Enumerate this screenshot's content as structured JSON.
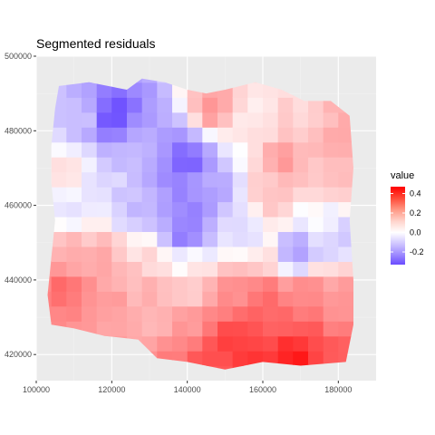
{
  "chart_data": {
    "type": "heatmap",
    "title": "Segmented residuals",
    "xlabel": "",
    "ylabel": "",
    "xlim": [
      100000,
      190000
    ],
    "ylim": [
      413000,
      500000
    ],
    "x_ticks": [
      100000,
      120000,
      140000,
      160000,
      180000
    ],
    "y_ticks": [
      420000,
      440000,
      460000,
      480000,
      500000
    ],
    "x_tick_labels": [
      "100000",
      "120000",
      "140000",
      "160000",
      "180000"
    ],
    "y_tick_labels": [
      "420000",
      "440000",
      "460000",
      "480000",
      "500000"
    ],
    "grid": true,
    "legend": {
      "title": "value",
      "placement": "right",
      "range": [
        -0.33,
        0.47
      ],
      "ticks": [
        0.4,
        0.2,
        0.0,
        -0.2
      ],
      "tick_labels": [
        "0.4",
        "0.2",
        "0.0",
        "-0.2"
      ]
    },
    "colors": {
      "negative": "#6a4cff",
      "zero": "#ffffff",
      "positive": "#ff0000",
      "panel": "#ebebeb",
      "grid_major": "#ffffff",
      "grid_minor": "#f2f2f2"
    },
    "anchors": [
      {
        "x": 121000,
        "y": 484000,
        "value": -0.33
      },
      {
        "x": 112000,
        "y": 484000,
        "value": -0.1
      },
      {
        "x": 128000,
        "y": 480000,
        "value": -0.15
      },
      {
        "x": 140000,
        "y": 472000,
        "value": -0.28
      },
      {
        "x": 133000,
        "y": 468000,
        "value": -0.18
      },
      {
        "x": 140000,
        "y": 460000,
        "value": -0.22
      },
      {
        "x": 139000,
        "y": 452000,
        "value": -0.25
      },
      {
        "x": 147000,
        "y": 464000,
        "value": -0.15
      },
      {
        "x": 126000,
        "y": 458000,
        "value": -0.1
      },
      {
        "x": 127000,
        "y": 472000,
        "value": -0.12
      },
      {
        "x": 108000,
        "y": 469000,
        "value": 0.05
      },
      {
        "x": 108000,
        "y": 458000,
        "value": -0.03
      },
      {
        "x": 118000,
        "y": 467000,
        "value": -0.05
      },
      {
        "x": 154000,
        "y": 452000,
        "value": -0.06
      },
      {
        "x": 147000,
        "y": 486000,
        "value": 0.15
      },
      {
        "x": 157000,
        "y": 482000,
        "value": 0.02
      },
      {
        "x": 170000,
        "y": 483000,
        "value": 0.06
      },
      {
        "x": 180000,
        "y": 480000,
        "value": 0.12
      },
      {
        "x": 165000,
        "y": 472000,
        "value": 0.15
      },
      {
        "x": 178000,
        "y": 468000,
        "value": 0.1
      },
      {
        "x": 162000,
        "y": 462000,
        "value": 0.08
      },
      {
        "x": 176000,
        "y": 458000,
        "value": 0.0
      },
      {
        "x": 169000,
        "y": 447000,
        "value": -0.18
      },
      {
        "x": 180000,
        "y": 452000,
        "value": -0.08
      },
      {
        "x": 160000,
        "y": 445000,
        "value": 0.05
      },
      {
        "x": 108000,
        "y": 447000,
        "value": 0.12
      },
      {
        "x": 118000,
        "y": 446000,
        "value": 0.12
      },
      {
        "x": 130000,
        "y": 447000,
        "value": 0.05
      },
      {
        "x": 141000,
        "y": 445000,
        "value": 0.02
      },
      {
        "x": 108000,
        "y": 437000,
        "value": 0.25
      },
      {
        "x": 118000,
        "y": 436000,
        "value": 0.15
      },
      {
        "x": 130000,
        "y": 436000,
        "value": 0.12
      },
      {
        "x": 140000,
        "y": 437000,
        "value": 0.06
      },
      {
        "x": 150000,
        "y": 436000,
        "value": 0.18
      },
      {
        "x": 160000,
        "y": 436000,
        "value": 0.25
      },
      {
        "x": 172000,
        "y": 436000,
        "value": 0.2
      },
      {
        "x": 180000,
        "y": 434000,
        "value": 0.15
      },
      {
        "x": 108000,
        "y": 428000,
        "value": 0.18
      },
      {
        "x": 120000,
        "y": 428000,
        "value": 0.15
      },
      {
        "x": 130000,
        "y": 426000,
        "value": 0.1
      },
      {
        "x": 140000,
        "y": 427000,
        "value": 0.15
      },
      {
        "x": 152000,
        "y": 424000,
        "value": 0.35
      },
      {
        "x": 162000,
        "y": 426000,
        "value": 0.28
      },
      {
        "x": 172000,
        "y": 425000,
        "value": 0.3
      },
      {
        "x": 180000,
        "y": 428000,
        "value": 0.2
      },
      {
        "x": 134000,
        "y": 420000,
        "value": 0.2
      },
      {
        "x": 145000,
        "y": 420000,
        "value": 0.3
      },
      {
        "x": 158000,
        "y": 420000,
        "value": 0.35
      },
      {
        "x": 168000,
        "y": 420000,
        "value": 0.42
      },
      {
        "x": 178000,
        "y": 421000,
        "value": 0.3
      }
    ],
    "outline": [
      [
        106000,
        492000
      ],
      [
        114000,
        493000
      ],
      [
        124000,
        491000
      ],
      [
        128000,
        494000
      ],
      [
        134000,
        493000
      ],
      [
        140000,
        491000
      ],
      [
        145000,
        490000
      ],
      [
        150000,
        491000
      ],
      [
        158000,
        493000
      ],
      [
        165000,
        491000
      ],
      [
        171000,
        488000
      ],
      [
        178000,
        488000
      ],
      [
        183000,
        484000
      ],
      [
        184000,
        470000
      ],
      [
        183000,
        456000
      ],
      [
        184000,
        440000
      ],
      [
        184000,
        428000
      ],
      [
        182000,
        418000
      ],
      [
        170000,
        417000
      ],
      [
        160000,
        418000
      ],
      [
        150000,
        416000
      ],
      [
        140000,
        418000
      ],
      [
        132000,
        419000
      ],
      [
        127000,
        424000
      ],
      [
        118000,
        425000
      ],
      [
        110000,
        427000
      ],
      [
        104000,
        428000
      ],
      [
        103000,
        436000
      ],
      [
        104000,
        446000
      ],
      [
        105000,
        456000
      ],
      [
        104000,
        466000
      ],
      [
        104000,
        476000
      ],
      [
        105000,
        486000
      ]
    ]
  }
}
